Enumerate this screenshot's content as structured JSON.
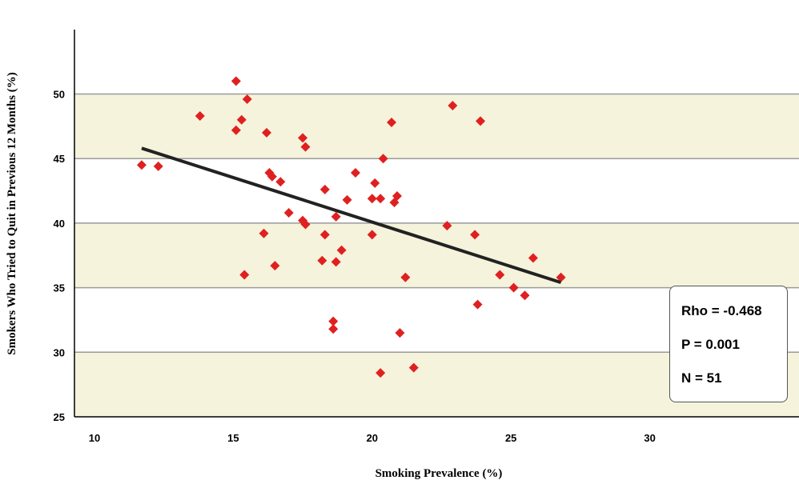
{
  "chart_data": {
    "type": "scatter",
    "xlabel": "Smoking Prevalence (%)",
    "ylabel": "Smokers Who Tried to Quit in Previous 12 Months (%)",
    "xlim": [
      9.3,
      30.3
    ],
    "ylim": [
      25,
      55
    ],
    "xticks": [
      "10",
      "15",
      "20",
      "25",
      "30"
    ],
    "yticks": [
      "25",
      "30",
      "35",
      "40",
      "45",
      "50"
    ],
    "grid": "horizontal bands",
    "colors": {
      "band": "#f5f3dc",
      "marker": "#e02020",
      "trendline": "#222222"
    },
    "points": [
      [
        11.7,
        44.5
      ],
      [
        12.3,
        44.4
      ],
      [
        13.8,
        48.3
      ],
      [
        15.1,
        51.0
      ],
      [
        15.1,
        47.2
      ],
      [
        15.3,
        48.0
      ],
      [
        15.5,
        49.6
      ],
      [
        15.4,
        36.0
      ],
      [
        16.1,
        39.2
      ],
      [
        16.2,
        47.0
      ],
      [
        16.3,
        43.9
      ],
      [
        16.4,
        43.6
      ],
      [
        16.5,
        36.7
      ],
      [
        16.7,
        43.2
      ],
      [
        17.0,
        40.8
      ],
      [
        17.5,
        46.6
      ],
      [
        17.5,
        40.2
      ],
      [
        17.6,
        39.9
      ],
      [
        17.6,
        45.9
      ],
      [
        18.2,
        37.1
      ],
      [
        18.3,
        42.6
      ],
      [
        18.3,
        39.1
      ],
      [
        18.6,
        32.4
      ],
      [
        18.6,
        31.8
      ],
      [
        18.7,
        40.5
      ],
      [
        18.7,
        37.0
      ],
      [
        18.9,
        37.9
      ],
      [
        19.1,
        41.8
      ],
      [
        19.4,
        43.9
      ],
      [
        20.0,
        41.9
      ],
      [
        20.0,
        39.1
      ],
      [
        20.1,
        43.1
      ],
      [
        20.3,
        41.9
      ],
      [
        20.3,
        28.4
      ],
      [
        20.4,
        45.0
      ],
      [
        20.7,
        47.8
      ],
      [
        20.8,
        41.6
      ],
      [
        20.9,
        42.1
      ],
      [
        21.0,
        31.5
      ],
      [
        21.2,
        35.8
      ],
      [
        21.5,
        28.8
      ],
      [
        22.7,
        39.8
      ],
      [
        22.9,
        49.1
      ],
      [
        23.7,
        39.1
      ],
      [
        23.8,
        33.7
      ],
      [
        23.9,
        47.9
      ],
      [
        24.6,
        36.0
      ],
      [
        25.1,
        35.0
      ],
      [
        25.5,
        34.4
      ],
      [
        25.8,
        37.3
      ],
      [
        26.8,
        35.8
      ]
    ],
    "trendline": {
      "from": [
        11.7,
        45.8
      ],
      "to": [
        26.8,
        35.4
      ]
    },
    "annotations": {
      "rho": "Rho  = -0.468",
      "p": "P  =  0.001",
      "n": "N  =  51"
    }
  }
}
